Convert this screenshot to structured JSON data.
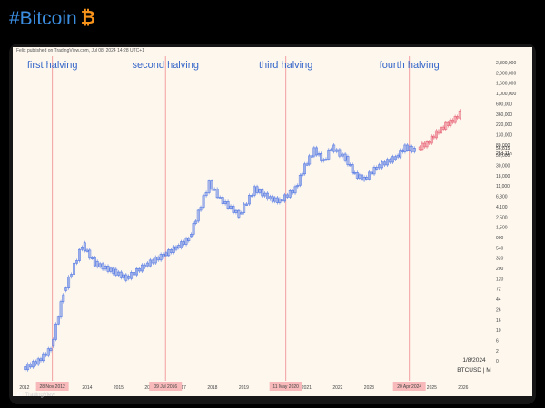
{
  "header": {
    "hashtag_title": "#Bitcoin",
    "icon": "bitcoin-icon"
  },
  "attribution": "Felix published on TradingView.com, Jul 08, 2024 14:28 UTC+1",
  "footer": {
    "brand": "TradingView",
    "icon": "tradingview-logo-icon"
  },
  "colors": {
    "candle_up": "#5b7ee5",
    "forecast": "#e8687a",
    "halving_line": "#f2a0a0",
    "halving_box": "#f7b9b9",
    "label": "#3566c9",
    "plot_bg": "#fdf7ee"
  },
  "chart_data": {
    "type": "line",
    "title": "",
    "symbol_label": "BTCUSD | M",
    "date_label": "1/8/2024",
    "current_price": "56,815",
    "current_price_sub": "25d 11h",
    "scale": "log",
    "x_ticks": [
      "2012",
      "2014",
      "2015",
      "2016",
      "2017",
      "2018",
      "2019",
      "2020",
      "2021",
      "2022",
      "2023",
      "2024",
      "2025",
      "2026"
    ],
    "y_ticks": [
      "2,800,000",
      "2,000,000",
      "1,600,000",
      "1,000,000",
      "600,000",
      "360,000",
      "220,000",
      "130,000",
      "80,000",
      "50,000",
      "30,000",
      "18,000",
      "11,000",
      "6,800",
      "4,100",
      "2,500",
      "1,500",
      "900",
      "540",
      "320",
      "200",
      "120",
      "72",
      "44",
      "26",
      "16",
      "10",
      "6",
      "2",
      "0"
    ],
    "halvings": [
      {
        "label": "first halving",
        "date": "2012-11-28",
        "box": "28 Nov 2012"
      },
      {
        "label": "second halving",
        "date": "2016-07-09",
        "box": "09 Jul 2016"
      },
      {
        "label": "third halving",
        "date": "2020-05-11",
        "box": "11 May 2020"
      },
      {
        "label": "fourth halving",
        "date": "2024-04-20",
        "box": "20 Apr 2024"
      }
    ],
    "series": [
      {
        "name": "BTCUSD",
        "x": [
          2012.0,
          2012.5,
          2012.9,
          2013.3,
          2013.9,
          2014.3,
          2014.9,
          2015.3,
          2015.9,
          2016.5,
          2016.9,
          2017.3,
          2017.6,
          2017.95,
          2018.3,
          2018.9,
          2019.4,
          2019.9,
          2020.2,
          2020.7,
          2021.0,
          2021.3,
          2021.6,
          2021.85,
          2022.3,
          2022.6,
          2022.9,
          2023.3,
          2023.9,
          2024.2,
          2024.5
        ],
        "y": [
          5,
          7,
          12,
          130,
          1000,
          450,
          320,
          240,
          420,
          650,
          900,
          1300,
          4000,
          14000,
          7000,
          3600,
          11000,
          7200,
          6500,
          11000,
          29000,
          58000,
          35000,
          65000,
          40000,
          20000,
          16500,
          28000,
          42000,
          65000,
          57000
        ]
      },
      {
        "name": "forecast",
        "x": [
          2024.6,
          2024.75,
          2024.9,
          2025.05,
          2025.2,
          2025.35,
          2025.5,
          2025.65,
          2025.8,
          2025.95
        ],
        "y": [
          60000,
          70000,
          75000,
          95000,
          120000,
          140000,
          170000,
          190000,
          220000,
          280000
        ]
      }
    ]
  }
}
